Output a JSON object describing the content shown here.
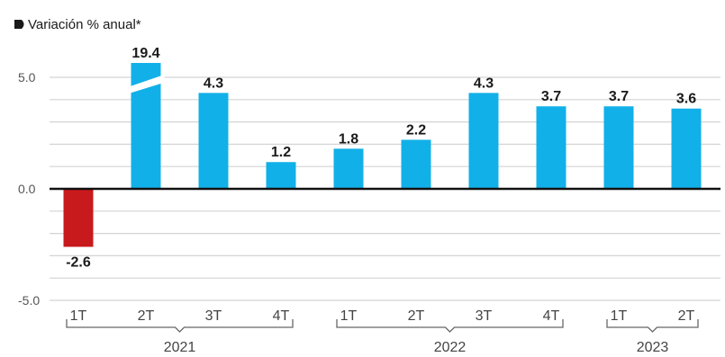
{
  "chart_data": {
    "type": "bar",
    "subtitle": "Variación % anual*",
    "categories": [
      "1T",
      "2T",
      "3T",
      "4T",
      "1T",
      "2T",
      "3T",
      "4T",
      "1T",
      "2T"
    ],
    "groups": [
      {
        "label": "2021",
        "start": 0,
        "end": 3
      },
      {
        "label": "2022",
        "start": 4,
        "end": 7
      },
      {
        "label": "2023",
        "start": 8,
        "end": 9
      }
    ],
    "values": [
      -2.6,
      19.4,
      4.3,
      1.2,
      1.8,
      2.2,
      4.3,
      3.7,
      3.7,
      3.6
    ],
    "value_labels": [
      "-2.6",
      "19.4",
      "4.3",
      "1.2",
      "1.8",
      "2.2",
      "4.3",
      "3.7",
      "3.7",
      "3.6"
    ],
    "yticks": [
      5.0,
      0.0,
      -5.0
    ],
    "ytick_labels": [
      "5.0",
      "0.0",
      "-5.0"
    ],
    "ylim": [
      -5.0,
      5.0
    ],
    "axis_break": {
      "index": 1
    },
    "grid": true,
    "colors": {
      "positive": "#12b0e8",
      "negative": "#c8191c",
      "grid": "#d4d4d4",
      "zero_line": "#111111"
    }
  }
}
